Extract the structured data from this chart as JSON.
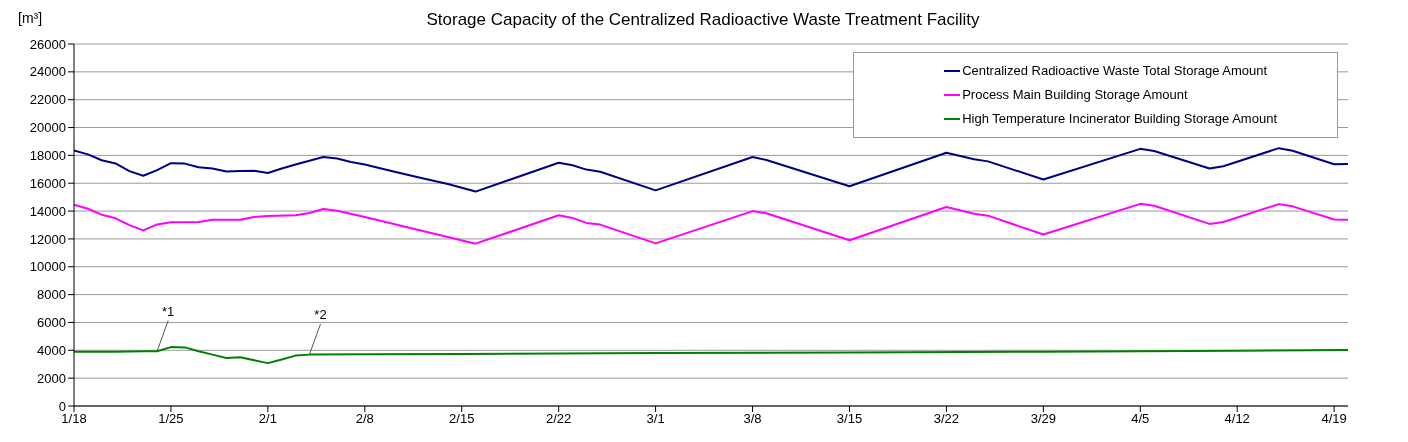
{
  "chart_data": {
    "type": "line",
    "title": "Storage Capacity of the Centralized Radioactive Waste Treatment Facility",
    "ylabel": "[m³]",
    "xlim": [
      "--01-18",
      "--04-20"
    ],
    "xticks": [
      {
        "value": "--01-18",
        "label": "1/18"
      },
      {
        "value": "--01-25",
        "label": "1/25"
      },
      {
        "value": "--02-01",
        "label": "2/1"
      },
      {
        "value": "--02-08",
        "label": "2/8"
      },
      {
        "value": "--02-15",
        "label": "2/15"
      },
      {
        "value": "--02-22",
        "label": "2/22"
      },
      {
        "value": "--03-01",
        "label": "3/1"
      },
      {
        "value": "--03-08",
        "label": "3/8"
      },
      {
        "value": "--03-15",
        "label": "3/15"
      },
      {
        "value": "--03-22",
        "label": "3/22"
      },
      {
        "value": "--03-29",
        "label": "3/29"
      },
      {
        "value": "--04-05",
        "label": "4/5"
      },
      {
        "value": "--04-12",
        "label": "4/12"
      },
      {
        "value": "--04-19",
        "label": "4/19"
      }
    ],
    "ylim": [
      0,
      26000
    ],
    "yticks": [
      0,
      2000,
      4000,
      6000,
      8000,
      10000,
      12000,
      14000,
      16000,
      18000,
      20000,
      22000,
      24000,
      26000
    ],
    "grid": "y",
    "legend": "top right",
    "marker": "none",
    "line_style": "solid",
    "series": [
      {
        "name": "Centralized Radioactive Waste Total Storage Amount",
        "color": "#000080",
        "x": [
          "--01-18",
          "--01-19",
          "--01-20",
          "--01-21",
          "--01-22",
          "--01-23",
          "--01-24",
          "--01-25",
          "--01-26",
          "--01-27",
          "--01-28",
          "--01-29",
          "--01-30",
          "--01-31",
          "--02-01",
          "--02-02",
          "--02-03",
          "--02-04",
          "--02-05",
          "--02-06",
          "--02-07",
          "--02-08",
          "--02-10",
          "--02-12",
          "--02-14",
          "--02-16",
          "--02-22",
          "--02-23",
          "--02-24",
          "--02-25",
          "--03-01",
          "--03-08",
          "--03-09",
          "--03-15",
          "--03-22",
          "--03-24",
          "--03-25",
          "--03-29",
          "--04-05",
          "--04-06",
          "--04-10",
          "--04-11",
          "--04-15",
          "--04-16",
          "--04-19",
          "--04-20"
        ],
        "values": [
          18360,
          18070,
          17650,
          17420,
          16870,
          16540,
          16940,
          17440,
          17410,
          17150,
          17060,
          16840,
          16870,
          16890,
          16730,
          17060,
          17340,
          17620,
          17880,
          17770,
          17530,
          17340,
          16860,
          16400,
          15950,
          15400,
          17470,
          17290,
          16980,
          16820,
          15490,
          17880,
          17670,
          15780,
          18190,
          17720,
          17570,
          16270,
          18470,
          18310,
          17060,
          17220,
          18520,
          18330,
          17360,
          17380
        ]
      },
      {
        "name": "Process Main Building Storage Amount",
        "color": "#ff00ff",
        "x": [
          "--01-18",
          "--01-19",
          "--01-20",
          "--01-21",
          "--01-22",
          "--01-23",
          "--01-24",
          "--01-25",
          "--01-27",
          "--01-28",
          "--01-30",
          "--01-31",
          "--02-01",
          "--02-03",
          "--02-04",
          "--02-05",
          "--02-06",
          "--02-08",
          "--02-16",
          "--02-22",
          "--02-23",
          "--02-24",
          "--02-25",
          "--03-01",
          "--03-08",
          "--03-09",
          "--03-15",
          "--03-22",
          "--03-24",
          "--03-25",
          "--03-29",
          "--04-05",
          "--04-06",
          "--04-10",
          "--04-11",
          "--04-15",
          "--04-16",
          "--04-19",
          "--04-20"
        ],
        "values": [
          14450,
          14170,
          13740,
          13480,
          12990,
          12610,
          13040,
          13200,
          13220,
          13370,
          13370,
          13580,
          13650,
          13700,
          13860,
          14150,
          14030,
          13580,
          11660,
          13700,
          13510,
          13150,
          13030,
          11680,
          14000,
          13840,
          11900,
          14290,
          13810,
          13670,
          12320,
          14520,
          14380,
          13080,
          13220,
          14500,
          14340,
          13390,
          13380
        ]
      },
      {
        "name": "High Temperature Incinerator Building Storage Amount",
        "color": "#008000",
        "x": [
          "--01-18",
          "--01-21",
          "--01-23",
          "--01-24",
          "--01-25",
          "--01-26",
          "--01-27",
          "--01-28",
          "--01-29",
          "--01-30",
          "--02-01",
          "--02-02",
          "--02-03",
          "--02-04",
          "--02-08",
          "--02-15",
          "--03-01",
          "--03-15",
          "--03-29",
          "--04-12",
          "--04-20"
        ],
        "values": [
          3900,
          3900,
          3930,
          3930,
          4230,
          4210,
          3930,
          3690,
          3450,
          3500,
          3080,
          3340,
          3620,
          3690,
          3720,
          3740,
          3800,
          3850,
          3900,
          3970,
          4030
        ]
      }
    ],
    "annotations": [
      {
        "text": "*1",
        "x": "--01-24",
        "y": 3930
      },
      {
        "text": "*2",
        "x": "--02-04",
        "y": 3690
      }
    ]
  }
}
